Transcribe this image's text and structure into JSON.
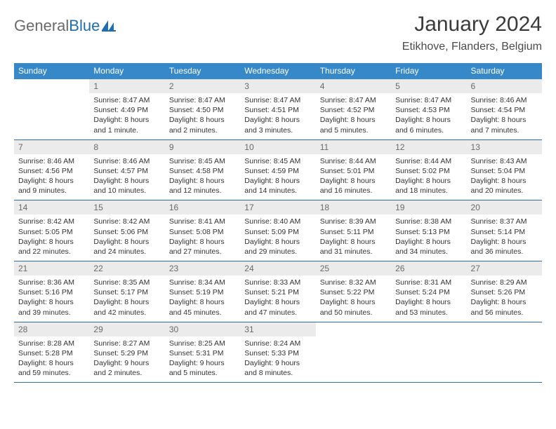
{
  "brand": {
    "word1": "General",
    "word2": "Blue"
  },
  "title": "January 2024",
  "location": "Etikhove, Flanders, Belgium",
  "colors": {
    "header_bg": "#3688c8",
    "header_text": "#ffffff",
    "daynum_bg": "#ebebeb",
    "daynum_text": "#6a6a6a",
    "week_border": "#2d6ea6",
    "brand_gray": "#6a6a6a",
    "brand_blue": "#1f6fb0",
    "body_text": "#333333",
    "page_bg": "#ffffff"
  },
  "dow": [
    "Sunday",
    "Monday",
    "Tuesday",
    "Wednesday",
    "Thursday",
    "Friday",
    "Saturday"
  ],
  "weeks": [
    [
      {
        "num": "",
        "sunrise": "",
        "sunset": "",
        "daylight": ""
      },
      {
        "num": "1",
        "sunrise": "Sunrise: 8:47 AM",
        "sunset": "Sunset: 4:49 PM",
        "daylight": "Daylight: 8 hours and 1 minute."
      },
      {
        "num": "2",
        "sunrise": "Sunrise: 8:47 AM",
        "sunset": "Sunset: 4:50 PM",
        "daylight": "Daylight: 8 hours and 2 minutes."
      },
      {
        "num": "3",
        "sunrise": "Sunrise: 8:47 AM",
        "sunset": "Sunset: 4:51 PM",
        "daylight": "Daylight: 8 hours and 3 minutes."
      },
      {
        "num": "4",
        "sunrise": "Sunrise: 8:47 AM",
        "sunset": "Sunset: 4:52 PM",
        "daylight": "Daylight: 8 hours and 5 minutes."
      },
      {
        "num": "5",
        "sunrise": "Sunrise: 8:47 AM",
        "sunset": "Sunset: 4:53 PM",
        "daylight": "Daylight: 8 hours and 6 minutes."
      },
      {
        "num": "6",
        "sunrise": "Sunrise: 8:46 AM",
        "sunset": "Sunset: 4:54 PM",
        "daylight": "Daylight: 8 hours and 7 minutes."
      }
    ],
    [
      {
        "num": "7",
        "sunrise": "Sunrise: 8:46 AM",
        "sunset": "Sunset: 4:56 PM",
        "daylight": "Daylight: 8 hours and 9 minutes."
      },
      {
        "num": "8",
        "sunrise": "Sunrise: 8:46 AM",
        "sunset": "Sunset: 4:57 PM",
        "daylight": "Daylight: 8 hours and 10 minutes."
      },
      {
        "num": "9",
        "sunrise": "Sunrise: 8:45 AM",
        "sunset": "Sunset: 4:58 PM",
        "daylight": "Daylight: 8 hours and 12 minutes."
      },
      {
        "num": "10",
        "sunrise": "Sunrise: 8:45 AM",
        "sunset": "Sunset: 4:59 PM",
        "daylight": "Daylight: 8 hours and 14 minutes."
      },
      {
        "num": "11",
        "sunrise": "Sunrise: 8:44 AM",
        "sunset": "Sunset: 5:01 PM",
        "daylight": "Daylight: 8 hours and 16 minutes."
      },
      {
        "num": "12",
        "sunrise": "Sunrise: 8:44 AM",
        "sunset": "Sunset: 5:02 PM",
        "daylight": "Daylight: 8 hours and 18 minutes."
      },
      {
        "num": "13",
        "sunrise": "Sunrise: 8:43 AM",
        "sunset": "Sunset: 5:04 PM",
        "daylight": "Daylight: 8 hours and 20 minutes."
      }
    ],
    [
      {
        "num": "14",
        "sunrise": "Sunrise: 8:42 AM",
        "sunset": "Sunset: 5:05 PM",
        "daylight": "Daylight: 8 hours and 22 minutes."
      },
      {
        "num": "15",
        "sunrise": "Sunrise: 8:42 AM",
        "sunset": "Sunset: 5:06 PM",
        "daylight": "Daylight: 8 hours and 24 minutes."
      },
      {
        "num": "16",
        "sunrise": "Sunrise: 8:41 AM",
        "sunset": "Sunset: 5:08 PM",
        "daylight": "Daylight: 8 hours and 27 minutes."
      },
      {
        "num": "17",
        "sunrise": "Sunrise: 8:40 AM",
        "sunset": "Sunset: 5:09 PM",
        "daylight": "Daylight: 8 hours and 29 minutes."
      },
      {
        "num": "18",
        "sunrise": "Sunrise: 8:39 AM",
        "sunset": "Sunset: 5:11 PM",
        "daylight": "Daylight: 8 hours and 31 minutes."
      },
      {
        "num": "19",
        "sunrise": "Sunrise: 8:38 AM",
        "sunset": "Sunset: 5:13 PM",
        "daylight": "Daylight: 8 hours and 34 minutes."
      },
      {
        "num": "20",
        "sunrise": "Sunrise: 8:37 AM",
        "sunset": "Sunset: 5:14 PM",
        "daylight": "Daylight: 8 hours and 36 minutes."
      }
    ],
    [
      {
        "num": "21",
        "sunrise": "Sunrise: 8:36 AM",
        "sunset": "Sunset: 5:16 PM",
        "daylight": "Daylight: 8 hours and 39 minutes."
      },
      {
        "num": "22",
        "sunrise": "Sunrise: 8:35 AM",
        "sunset": "Sunset: 5:17 PM",
        "daylight": "Daylight: 8 hours and 42 minutes."
      },
      {
        "num": "23",
        "sunrise": "Sunrise: 8:34 AM",
        "sunset": "Sunset: 5:19 PM",
        "daylight": "Daylight: 8 hours and 45 minutes."
      },
      {
        "num": "24",
        "sunrise": "Sunrise: 8:33 AM",
        "sunset": "Sunset: 5:21 PM",
        "daylight": "Daylight: 8 hours and 47 minutes."
      },
      {
        "num": "25",
        "sunrise": "Sunrise: 8:32 AM",
        "sunset": "Sunset: 5:22 PM",
        "daylight": "Daylight: 8 hours and 50 minutes."
      },
      {
        "num": "26",
        "sunrise": "Sunrise: 8:31 AM",
        "sunset": "Sunset: 5:24 PM",
        "daylight": "Daylight: 8 hours and 53 minutes."
      },
      {
        "num": "27",
        "sunrise": "Sunrise: 8:29 AM",
        "sunset": "Sunset: 5:26 PM",
        "daylight": "Daylight: 8 hours and 56 minutes."
      }
    ],
    [
      {
        "num": "28",
        "sunrise": "Sunrise: 8:28 AM",
        "sunset": "Sunset: 5:28 PM",
        "daylight": "Daylight: 8 hours and 59 minutes."
      },
      {
        "num": "29",
        "sunrise": "Sunrise: 8:27 AM",
        "sunset": "Sunset: 5:29 PM",
        "daylight": "Daylight: 9 hours and 2 minutes."
      },
      {
        "num": "30",
        "sunrise": "Sunrise: 8:25 AM",
        "sunset": "Sunset: 5:31 PM",
        "daylight": "Daylight: 9 hours and 5 minutes."
      },
      {
        "num": "31",
        "sunrise": "Sunrise: 8:24 AM",
        "sunset": "Sunset: 5:33 PM",
        "daylight": "Daylight: 9 hours and 8 minutes."
      },
      {
        "num": "",
        "sunrise": "",
        "sunset": "",
        "daylight": ""
      },
      {
        "num": "",
        "sunrise": "",
        "sunset": "",
        "daylight": ""
      },
      {
        "num": "",
        "sunrise": "",
        "sunset": "",
        "daylight": ""
      }
    ]
  ]
}
